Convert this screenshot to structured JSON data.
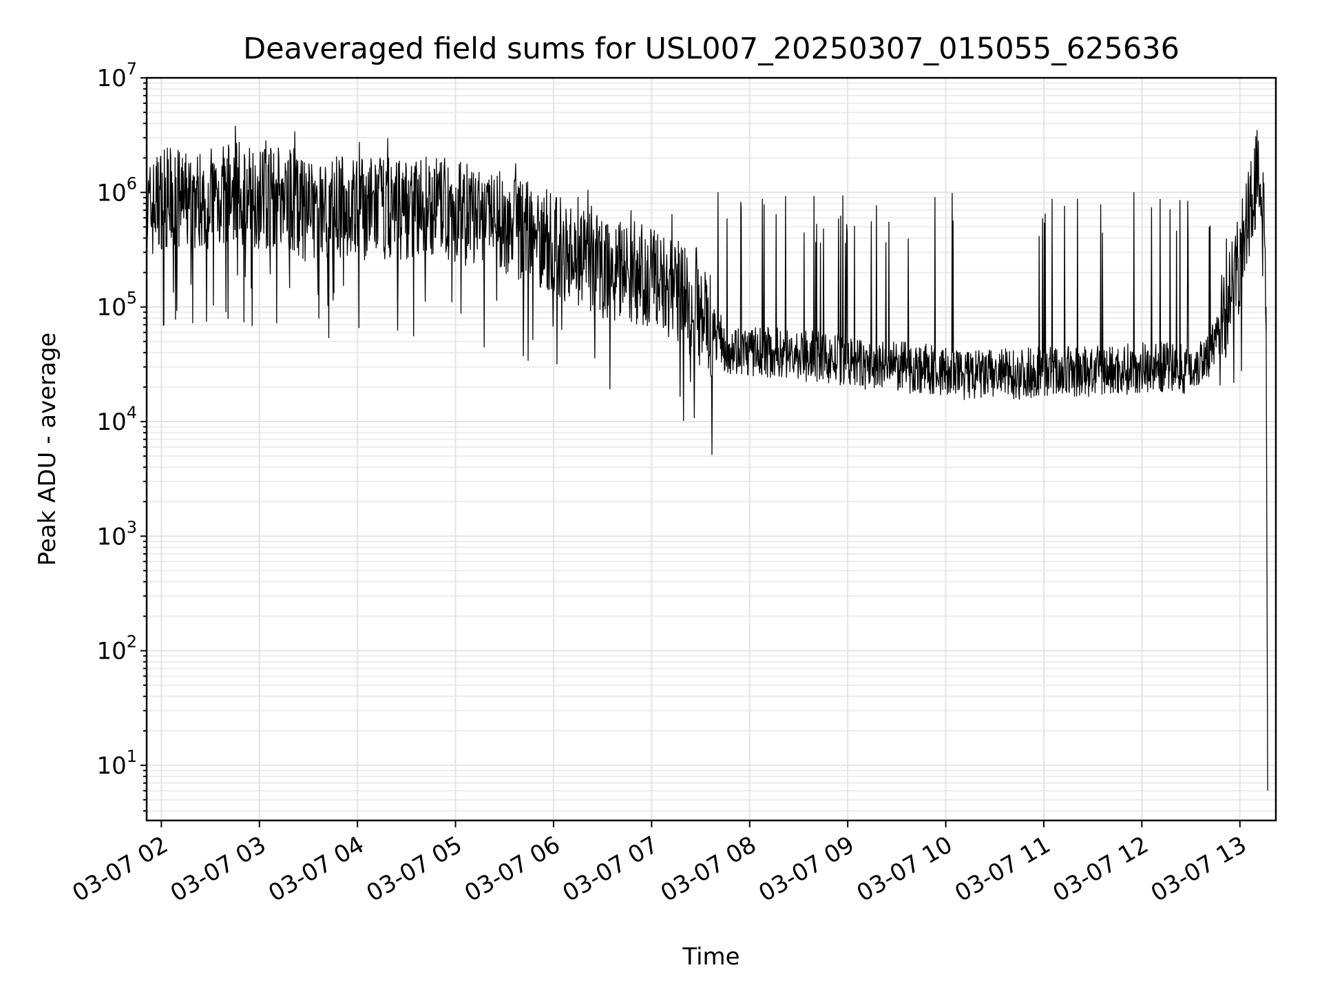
{
  "chart_data": {
    "type": "line",
    "title": "Deaveraged field sums for USL007_20250307_015055_625636",
    "xlabel": "Time",
    "ylabel": "Peak ADU - average",
    "yscale": "log",
    "ylim": [
      3.3,
      10000000
    ],
    "xlim": [
      "03-07 01:51",
      "03-07 13:22"
    ],
    "grid": "on (major and minor)",
    "legend": "none",
    "line_color": "#000000",
    "x_ticks": [
      "03-07 02",
      "03-07 03",
      "03-07 04",
      "03-07 05",
      "03-07 06",
      "03-07 07",
      "03-07 08",
      "03-07 09",
      "03-07 10",
      "03-07 11",
      "03-07 12",
      "03-07 13"
    ],
    "y_ticks": [
      {
        "base": "10",
        "exp": "1",
        "value": 10
      },
      {
        "base": "10",
        "exp": "2",
        "value": 100
      },
      {
        "base": "10",
        "exp": "3",
        "value": 1000
      },
      {
        "base": "10",
        "exp": "4",
        "value": 10000
      },
      {
        "base": "10",
        "exp": "5",
        "value": 100000
      },
      {
        "base": "10",
        "exp": "6",
        "value": 1000000
      },
      {
        "base": "10",
        "exp": "7",
        "value": 10000000
      }
    ],
    "series": [
      {
        "x": [
          "03-07 01:51",
          "03-07 02:00",
          "03-07 02:15",
          "03-07 02:30",
          "03-07 02:45",
          "03-07 03:00",
          "03-07 03:15",
          "03-07 03:30",
          "03-07 03:45",
          "03-07 04:00",
          "03-07 04:15",
          "03-07 04:30",
          "03-07 04:45",
          "03-07 05:00",
          "03-07 05:15",
          "03-07 05:30",
          "03-07 05:45",
          "03-07 06:00",
          "03-07 06:15",
          "03-07 06:30",
          "03-07 06:45",
          "03-07 07:00",
          "03-07 07:15",
          "03-07 07:30",
          "03-07 07:45",
          "03-07 08:00",
          "03-07 08:15",
          "03-07 08:30",
          "03-07 08:45",
          "03-07 09:00",
          "03-07 09:15",
          "03-07 09:30",
          "03-07 09:45",
          "03-07 10:00",
          "03-07 10:15",
          "03-07 10:30",
          "03-07 10:45",
          "03-07 11:00",
          "03-07 11:15",
          "03-07 11:30",
          "03-07 11:45",
          "03-07 12:00",
          "03-07 12:15",
          "03-07 12:30",
          "03-07 12:45",
          "03-07 13:00",
          "03-07 13:10",
          "03-07 13:14",
          "03-07 13:16",
          "03-07 13:17"
        ],
        "y": [
          700000,
          1000000,
          900000,
          1000000,
          1100000,
          1000000,
          1050000,
          700000,
          850000,
          800000,
          820000,
          800000,
          850000,
          750000,
          650000,
          600000,
          500000,
          400000,
          300000,
          250000,
          230000,
          200000,
          160000,
          90000,
          45000,
          40000,
          40000,
          38000,
          36000,
          33000,
          30000,
          30000,
          29000,
          27000,
          25000,
          26000,
          26000,
          28000,
          27000,
          27000,
          28000,
          30000,
          30000,
          29000,
          45000,
          300000,
          1600000,
          1400000,
          100000,
          6
        ]
      }
    ]
  }
}
